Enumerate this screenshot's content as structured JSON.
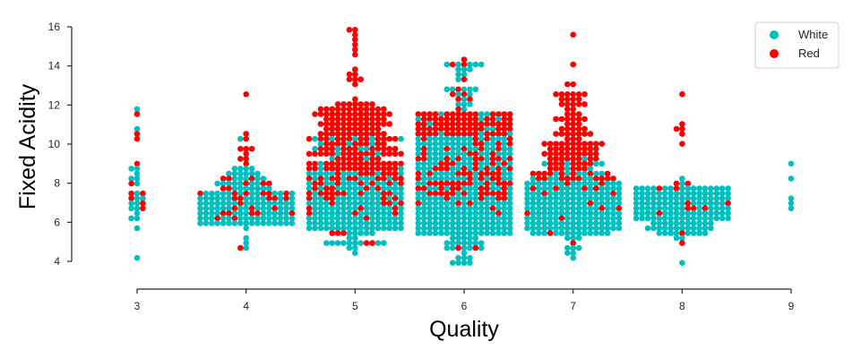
{
  "chart_data": {
    "type": "scatter",
    "subtype": "swarm",
    "title": "",
    "xlabel": "Quality",
    "ylabel": "Fixed Acidity",
    "categories": [
      "3",
      "4",
      "5",
      "6",
      "7",
      "8",
      "9"
    ],
    "x_ticks": [
      "3",
      "4",
      "5",
      "6",
      "7",
      "8",
      "9"
    ],
    "y_ticks": [
      "4",
      "6",
      "8",
      "10",
      "12",
      "14",
      "16"
    ],
    "ylim": [
      2.8,
      16.2
    ],
    "grid": false,
    "legend": "top-right",
    "series": [
      {
        "name": "White",
        "color": "#00BFBF",
        "distribution": [
          {
            "quality": "3",
            "count": 20,
            "min": 4.2,
            "q1": 6.4,
            "median": 7.3,
            "q3": 8.6,
            "max": 11.8
          },
          {
            "quality": "4",
            "count": 163,
            "min": 4.8,
            "q1": 6.4,
            "median": 6.9,
            "q3": 7.5,
            "max": 10.2
          },
          {
            "quality": "5",
            "count": 1457,
            "min": 4.5,
            "q1": 6.3,
            "median": 6.8,
            "q3": 7.3,
            "max": 10.3
          },
          {
            "quality": "6",
            "count": 2198,
            "min": 3.8,
            "q1": 6.3,
            "median": 6.8,
            "q3": 7.3,
            "max": 14.2
          },
          {
            "quality": "7",
            "count": 880,
            "min": 4.2,
            "q1": 6.2,
            "median": 6.7,
            "q3": 7.2,
            "max": 9.2
          },
          {
            "quality": "8",
            "count": 175,
            "min": 3.9,
            "q1": 6.2,
            "median": 6.8,
            "q3": 7.3,
            "max": 8.2
          },
          {
            "quality": "9",
            "count": 5,
            "min": 6.6,
            "q1": 6.9,
            "median": 7.1,
            "q3": 7.4,
            "max": 9.1
          }
        ]
      },
      {
        "name": "Red",
        "color": "#FF0000",
        "distribution": [
          {
            "quality": "3",
            "count": 10,
            "min": 6.7,
            "q1": 7.2,
            "median": 7.5,
            "q3": 9.9,
            "max": 11.6
          },
          {
            "quality": "4",
            "count": 53,
            "min": 4.6,
            "q1": 6.8,
            "median": 7.5,
            "q3": 8.4,
            "max": 12.5
          },
          {
            "quality": "5",
            "count": 681,
            "min": 5.0,
            "q1": 7.1,
            "median": 7.8,
            "q3": 8.9,
            "max": 15.9
          },
          {
            "quality": "6",
            "count": 638,
            "min": 4.7,
            "q1": 7.3,
            "median": 8.1,
            "q3": 9.4,
            "max": 14.3
          },
          {
            "quality": "7",
            "count": 199,
            "min": 4.9,
            "q1": 7.4,
            "median": 8.8,
            "q3": 10.1,
            "max": 15.6
          },
          {
            "quality": "8",
            "count": 18,
            "min": 5.0,
            "q1": 7.2,
            "median": 8.2,
            "q3": 10.6,
            "max": 12.6
          }
        ]
      }
    ]
  }
}
